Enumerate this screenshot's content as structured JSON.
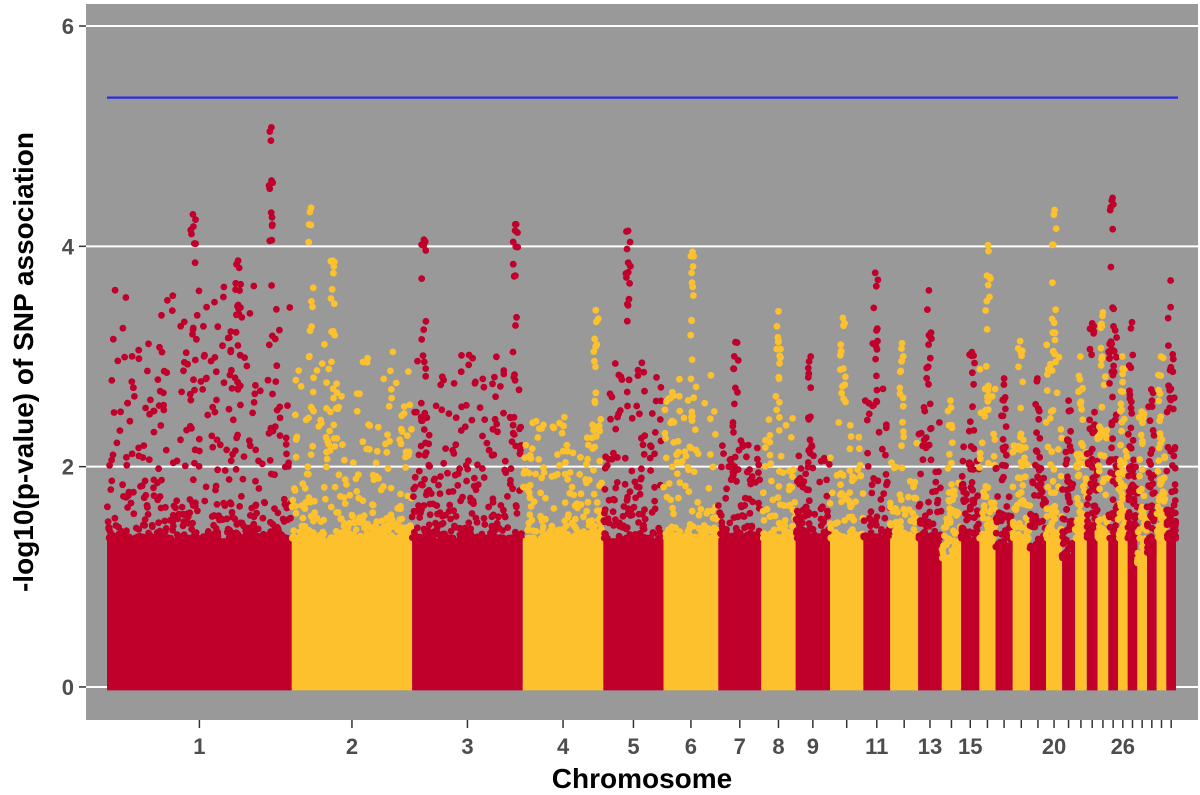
{
  "chart_data": {
    "type": "scatter",
    "title": "",
    "xlabel": "Chromosome",
    "ylabel": "-log10(p-value) of SNP association",
    "ylim": [
      -0.3,
      6.2
    ],
    "y_ticks": [
      0,
      2,
      4,
      6
    ],
    "grid": true,
    "legend": "none",
    "threshold": 5.35,
    "colors": {
      "odd": "#c0002a",
      "even": "#fcc12c",
      "panel": "#999999",
      "grid": "#ffffff",
      "threshold": "#2a2ae0"
    },
    "chromosomes": [
      {
        "label": "1",
        "start": 0.0,
        "end": 17.2,
        "max": 5.08,
        "peaks": [
          {
            "x": 8.0,
            "y": 4.29
          },
          {
            "x": 12.2,
            "y": 3.87
          },
          {
            "x": 15.3,
            "y": 5.08
          }
        ]
      },
      {
        "label": "2",
        "start": 17.2,
        "end": 28.4,
        "max": 4.35,
        "peaks": [
          {
            "x": 19.0,
            "y": 4.35
          },
          {
            "x": 21.0,
            "y": 3.87
          }
        ]
      },
      {
        "label": "3",
        "start": 28.4,
        "end": 38.7,
        "max": 4.2,
        "peaks": [
          {
            "x": 29.5,
            "y": 4.06
          },
          {
            "x": 38.0,
            "y": 4.2
          }
        ]
      },
      {
        "label": "4",
        "start": 38.7,
        "end": 46.2,
        "max": 3.42,
        "peaks": [
          {
            "x": 45.5,
            "y": 3.42
          }
        ]
      },
      {
        "label": "5",
        "start": 46.2,
        "end": 51.8,
        "max": 4.14,
        "peaks": [
          {
            "x": 48.5,
            "y": 4.14
          }
        ]
      },
      {
        "label": "6",
        "start": 51.8,
        "end": 56.9,
        "max": 3.95,
        "peaks": [
          {
            "x": 54.5,
            "y": 3.95
          }
        ]
      },
      {
        "label": "7",
        "start": 56.9,
        "end": 60.9,
        "max": 3.13,
        "peaks": [
          {
            "x": 58.5,
            "y": 3.13
          }
        ]
      },
      {
        "label": "8",
        "start": 60.9,
        "end": 64.1,
        "max": 3.41,
        "peaks": [
          {
            "x": 62.5,
            "y": 3.41
          }
        ]
      },
      {
        "label": "9",
        "start": 64.1,
        "end": 67.3,
        "max": 3.0,
        "peaks": [
          {
            "x": 65.5,
            "y": 3.0
          }
        ]
      },
      {
        "label": "",
        "start": 67.3,
        "end": 70.4,
        "max": 3.35,
        "peaks": [
          {
            "x": 68.5,
            "y": 3.35
          }
        ]
      },
      {
        "label": "11",
        "start": 70.4,
        "end": 72.9,
        "max": 3.76,
        "peaks": [
          {
            "x": 71.5,
            "y": 3.76
          }
        ]
      },
      {
        "label": "",
        "start": 72.9,
        "end": 75.5,
        "max": 3.12,
        "peaks": [
          {
            "x": 74.0,
            "y": 3.12
          }
        ]
      },
      {
        "label": "13",
        "start": 75.5,
        "end": 77.7,
        "max": 3.6,
        "peaks": [
          {
            "x": 76.5,
            "y": 3.6
          }
        ]
      },
      {
        "label": "",
        "start": 77.7,
        "end": 79.5,
        "max": 2.6,
        "peaks": [
          {
            "x": 78.5,
            "y": 2.6
          }
        ]
      },
      {
        "label": "15",
        "start": 79.5,
        "end": 81.2,
        "max": 3.04,
        "peaks": [
          {
            "x": 80.5,
            "y": 3.04
          }
        ]
      },
      {
        "label": "",
        "start": 81.2,
        "end": 82.7,
        "max": 4.01,
        "peaks": [
          {
            "x": 82.0,
            "y": 4.01
          }
        ]
      },
      {
        "label": "",
        "start": 82.7,
        "end": 84.3,
        "max": 2.8,
        "peaks": [
          {
            "x": 83.5,
            "y": 2.8
          }
        ]
      },
      {
        "label": "",
        "start": 84.3,
        "end": 85.9,
        "max": 3.14,
        "peaks": [
          {
            "x": 85.0,
            "y": 3.14
          }
        ]
      },
      {
        "label": "",
        "start": 85.9,
        "end": 87.4,
        "max": 2.8,
        "peaks": [
          {
            "x": 86.6,
            "y": 2.8
          }
        ]
      },
      {
        "label": "20",
        "start": 87.4,
        "end": 88.9,
        "max": 4.33,
        "peaks": [
          {
            "x": 88.2,
            "y": 4.33
          }
        ]
      },
      {
        "label": "",
        "start": 88.9,
        "end": 90.1,
        "max": 2.6,
        "peaks": [
          {
            "x": 89.5,
            "y": 2.6
          }
        ]
      },
      {
        "label": "",
        "start": 90.1,
        "end": 91.2,
        "max": 3.0,
        "peaks": [
          {
            "x": 90.6,
            "y": 3.0
          }
        ]
      },
      {
        "label": "",
        "start": 91.2,
        "end": 92.2,
        "max": 3.3,
        "peaks": [
          {
            "x": 91.7,
            "y": 3.3
          }
        ]
      },
      {
        "label": "",
        "start": 92.2,
        "end": 93.2,
        "max": 3.4,
        "peaks": [
          {
            "x": 92.7,
            "y": 3.4
          }
        ]
      },
      {
        "label": "",
        "start": 93.2,
        "end": 94.1,
        "max": 4.44,
        "peaks": [
          {
            "x": 93.6,
            "y": 4.44
          }
        ]
      },
      {
        "label": "26",
        "start": 94.1,
        "end": 95.0,
        "max": 3.0,
        "peaks": [
          {
            "x": 94.5,
            "y": 3.0
          }
        ]
      },
      {
        "label": "",
        "start": 95.0,
        "end": 95.9,
        "max": 3.31,
        "peaks": [
          {
            "x": 95.4,
            "y": 3.31
          }
        ]
      },
      {
        "label": "",
        "start": 95.9,
        "end": 96.8,
        "max": 2.5,
        "peaks": [
          {
            "x": 96.3,
            "y": 2.5
          }
        ]
      },
      {
        "label": "",
        "start": 96.8,
        "end": 97.7,
        "max": 2.7,
        "peaks": [
          {
            "x": 97.2,
            "y": 2.7
          }
        ]
      },
      {
        "label": "",
        "start": 97.7,
        "end": 98.6,
        "max": 3.0,
        "peaks": [
          {
            "x": 98.1,
            "y": 3.0
          }
        ]
      },
      {
        "label": "",
        "start": 98.6,
        "end": 99.5,
        "max": 3.69,
        "peaks": [
          {
            "x": 99.0,
            "y": 3.69
          }
        ]
      }
    ]
  }
}
